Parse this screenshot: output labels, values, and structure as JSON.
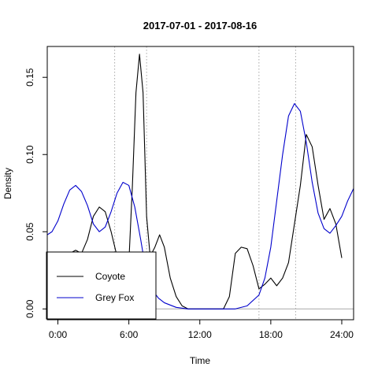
{
  "chart_data": {
    "type": "line",
    "title": "2017-07-01 - 2017-08-16",
    "xlabel": "Time",
    "ylabel": "Density",
    "xlim": [
      -0.9,
      25.0
    ],
    "ylim": [
      -0.007,
      0.17
    ],
    "x_ticks": [
      0,
      6,
      12,
      18,
      24
    ],
    "x_tick_labels": [
      "0:00",
      "6:00",
      "12:00",
      "18:00",
      "24:00"
    ],
    "y_ticks": [
      0.0,
      0.05,
      0.1,
      0.15
    ],
    "y_tick_labels": [
      "0.00",
      "0.05",
      "0.10",
      "0.15"
    ],
    "reference_hline": 0,
    "vertical_dotted_lines": [
      4.8,
      7.5,
      17.0,
      20.1
    ],
    "legend_placement": "bottom-left",
    "series": [
      {
        "name": "Coyote",
        "color": "#000000",
        "x": [
          -0.9,
          0,
          1,
          1.5,
          2,
          2.5,
          3,
          3.5,
          4,
          4.5,
          5,
          5.5,
          6,
          6.3,
          6.6,
          6.9,
          7.2,
          7.5,
          7.8,
          8.2,
          8.6,
          9,
          9.5,
          10,
          10.5,
          11,
          11.5,
          12,
          13,
          14,
          14.5,
          15,
          15.5,
          16,
          16.5,
          17,
          17.5,
          18,
          18.5,
          19,
          19.5,
          20,
          20.5,
          21,
          21.5,
          22,
          22.5,
          23,
          23.5,
          24
        ],
        "y": [
          0.034,
          0.035,
          0.036,
          0.038,
          0.036,
          0.045,
          0.06,
          0.066,
          0.063,
          0.05,
          0.034,
          0.025,
          0.03,
          0.08,
          0.14,
          0.165,
          0.14,
          0.06,
          0.034,
          0.04,
          0.048,
          0.04,
          0.02,
          0.008,
          0.002,
          0.0,
          0.0,
          0.0,
          0.0,
          0.0,
          0.008,
          0.036,
          0.04,
          0.039,
          0.028,
          0.013,
          0.016,
          0.02,
          0.015,
          0.02,
          0.03,
          0.055,
          0.08,
          0.113,
          0.105,
          0.08,
          0.058,
          0.065,
          0.055,
          0.033
        ]
      },
      {
        "name": "Grey Fox",
        "color": "#0000cc",
        "x": [
          -0.9,
          -0.5,
          0,
          0.5,
          1,
          1.5,
          2,
          2.5,
          3,
          3.5,
          4,
          4.5,
          5,
          5.5,
          6,
          6.5,
          7,
          7.5,
          8,
          8.5,
          9,
          10,
          11,
          12,
          13,
          14,
          15,
          16,
          17,
          17.5,
          18,
          18.5,
          19,
          19.5,
          20,
          20.5,
          21,
          21.5,
          22,
          22.5,
          23,
          23.5,
          24,
          24.5,
          25
        ],
        "y": [
          0.048,
          0.05,
          0.057,
          0.068,
          0.077,
          0.08,
          0.076,
          0.067,
          0.055,
          0.05,
          0.053,
          0.063,
          0.075,
          0.082,
          0.08,
          0.066,
          0.045,
          0.022,
          0.012,
          0.007,
          0.004,
          0.001,
          0.0,
          0.0,
          0.0,
          0.0,
          0.0,
          0.002,
          0.009,
          0.02,
          0.04,
          0.07,
          0.1,
          0.125,
          0.133,
          0.128,
          0.108,
          0.082,
          0.062,
          0.052,
          0.049,
          0.054,
          0.06,
          0.07,
          0.078
        ]
      }
    ]
  }
}
